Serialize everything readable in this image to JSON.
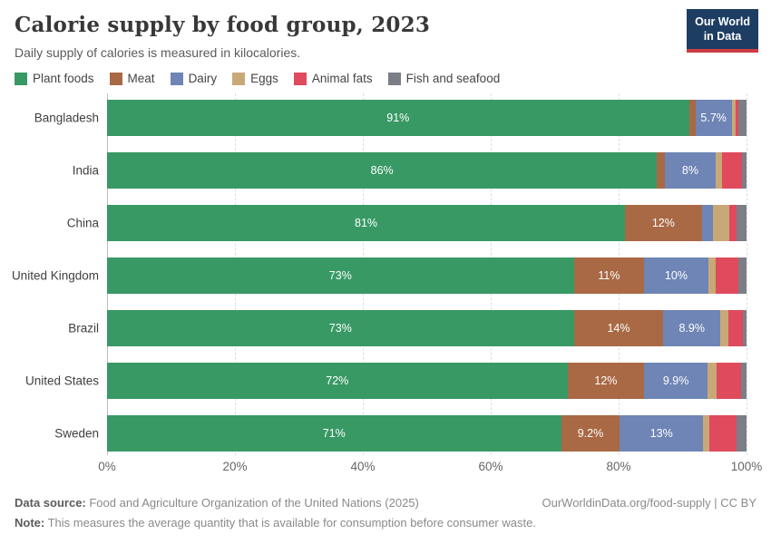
{
  "header": {
    "title": "Calorie supply by food group, 2023",
    "subtitle": "Daily supply of calories is measured in kilocalories.",
    "logo_line1": "Our World",
    "logo_line2": "in Data",
    "logo_bg": "#1d3d63",
    "logo_stripe": "#cb3d43"
  },
  "legend": {
    "items": [
      {
        "label": "Plant foods",
        "color": "#389965"
      },
      {
        "label": "Meat",
        "color": "#A96944"
      },
      {
        "label": "Dairy",
        "color": "#6E85B5"
      },
      {
        "label": "Eggs",
        "color": "#C9A877"
      },
      {
        "label": "Animal fats",
        "color": "#DF4A5D"
      },
      {
        "label": "Fish and seafood",
        "color": "#7B7E87"
      }
    ]
  },
  "chart_data": {
    "type": "bar",
    "stacked": true,
    "orientation": "horizontal",
    "title": "Calorie supply by food group, 2023",
    "subtitle": "Daily supply of calories is measured in kilocalories.",
    "unit": "%",
    "xlim": [
      0,
      100
    ],
    "grid": "dashed-vertical",
    "legend_position": "top",
    "x_ticks": [
      {
        "label": "0%",
        "value": 0
      },
      {
        "label": "20%",
        "value": 20
      },
      {
        "label": "40%",
        "value": 40
      },
      {
        "label": "60%",
        "value": 60
      },
      {
        "label": "80%",
        "value": 80
      },
      {
        "label": "100%",
        "value": 100
      }
    ],
    "categories": [
      "Bangladesh",
      "India",
      "China",
      "United Kingdom",
      "Brazil",
      "United States",
      "Sweden"
    ],
    "series": [
      {
        "name": "Plant foods",
        "color": "#389965",
        "values": [
          91,
          86,
          81,
          73,
          73,
          72,
          71
        ],
        "labels": [
          "91%",
          "86%",
          "81%",
          "73%",
          "73%",
          "72%",
          "71%"
        ]
      },
      {
        "name": "Meat",
        "color": "#A96944",
        "values": [
          1.0,
          1.2,
          12,
          11,
          14,
          12,
          9.2
        ],
        "labels": [
          "",
          "",
          "12%",
          "11%",
          "14%",
          "12%",
          "9.2%"
        ]
      },
      {
        "name": "Dairy",
        "color": "#6E85B5",
        "values": [
          5.7,
          8,
          1.7,
          10,
          8.9,
          9.9,
          13
        ],
        "labels": [
          "5.7%",
          "8%",
          "",
          "10%",
          "8.9%",
          "9.9%",
          "13%"
        ]
      },
      {
        "name": "Eggs",
        "color": "#C9A877",
        "values": [
          0.6,
          1.0,
          2.6,
          1.2,
          1.2,
          1.4,
          1.0
        ],
        "labels": [
          "",
          "",
          "",
          "",
          "",
          "",
          ""
        ]
      },
      {
        "name": "Animal fats",
        "color": "#DF4A5D",
        "values": [
          0.4,
          3.1,
          1.1,
          3.5,
          2.4,
          3.8,
          4.3
        ],
        "labels": [
          "",
          "",
          "",
          "",
          "",
          "",
          ""
        ]
      },
      {
        "name": "Fish and seafood",
        "color": "#7B7E87",
        "values": [
          1.3,
          0.7,
          1.6,
          1.3,
          0.5,
          0.9,
          1.5
        ],
        "labels": [
          "",
          "",
          "",
          "",
          "",
          "",
          ""
        ]
      }
    ]
  },
  "footer": {
    "datasource_label": "Data source:",
    "datasource_text": " Food and Agriculture Organization of the United Nations (2025)",
    "link": "OurWorldinData.org/food-supply | CC BY",
    "note_label": "Note:",
    "note_text": " This measures the average quantity that is available for consumption before consumer waste."
  }
}
